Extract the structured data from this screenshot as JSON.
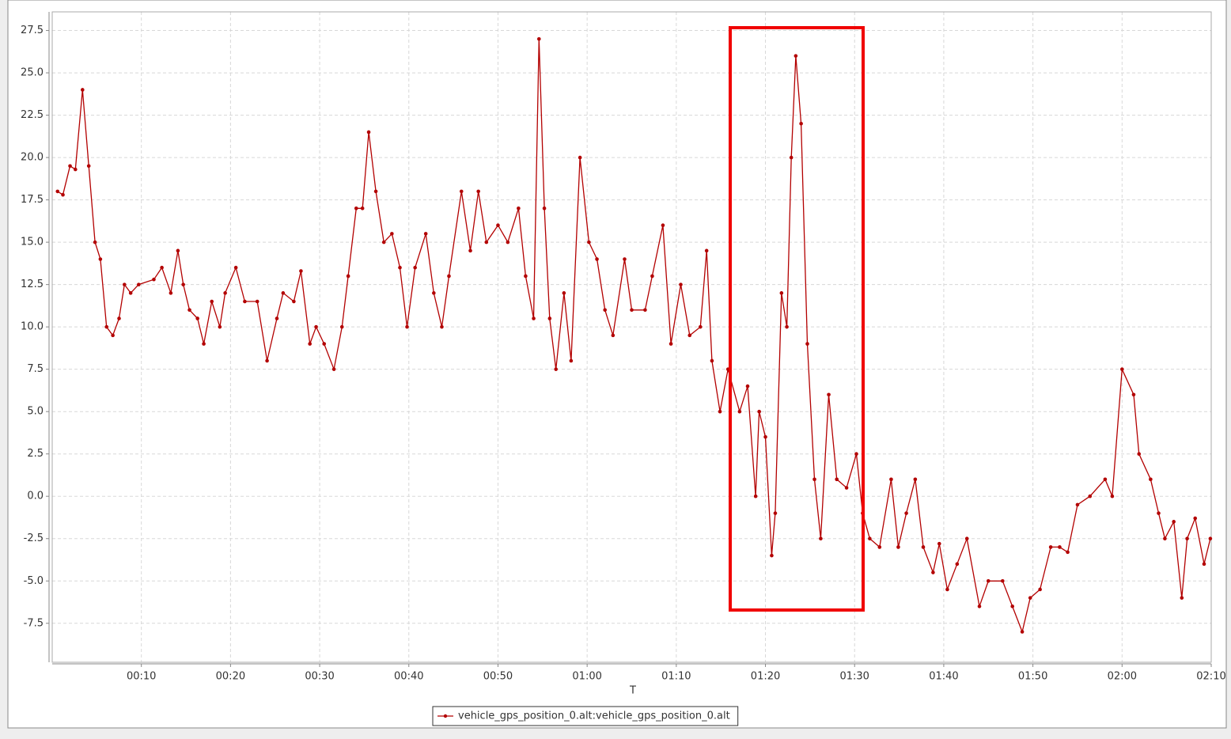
{
  "chart_data": {
    "type": "line",
    "x_label": "T",
    "x": [
      0.6,
      1.2,
      2,
      2.6,
      3.4,
      4.1,
      4.8,
      5.4,
      6.1,
      6.8,
      7.5,
      8.1,
      8.8,
      9.7,
      11.4,
      12.3,
      13.3,
      14.1,
      14.7,
      15.4,
      16.3,
      17,
      17.9,
      18.8,
      19.4,
      20.6,
      21.6,
      23,
      24.1,
      25.2,
      25.9,
      27.1,
      27.9,
      28.9,
      29.6,
      30.5,
      31.6,
      32.5,
      33.2,
      34.1,
      34.8,
      35.5,
      36.3,
      37.2,
      38.1,
      39,
      39.8,
      40.7,
      41.9,
      42.8,
      43.7,
      44.5,
      45.9,
      46.9,
      47.8,
      48.7,
      50,
      51.1,
      52.3,
      53.1,
      54,
      54.6,
      55.2,
      55.8,
      56.5,
      57.4,
      58.2,
      59.2,
      60.2,
      61.1,
      62,
      62.9,
      64.2,
      65,
      66.5,
      67.3,
      68.5,
      69.4,
      70.5,
      71.5,
      72.7,
      73.4,
      74,
      74.9,
      75.8,
      77.1,
      78,
      78.9,
      79.3,
      80,
      80.7,
      81.1,
      81.8,
      82.4,
      82.9,
      83.4,
      84,
      84.7,
      85.5,
      86.2,
      87.1,
      88,
      89.1,
      90.2,
      90.9,
      91.7,
      92.8,
      94.1,
      94.9,
      95.8,
      96.8,
      97.7,
      98.8,
      99.5,
      100.4,
      101.5,
      102.6,
      104,
      105,
      106.6,
      107.7,
      108.8,
      109.7,
      110.8,
      112,
      113,
      113.9,
      115,
      116.4,
      118.1,
      118.9,
      120,
      121.3,
      121.9,
      123.2,
      124.1,
      124.8,
      125.8,
      126.7,
      127.3,
      128.2,
      129.2,
      129.9
    ],
    "series": [
      {
        "name": "vehicle_gps_position_0.alt:vehicle_gps_position_0.alt",
        "color": "#b30000",
        "values": [
          18,
          17.8,
          19.5,
          19.3,
          24,
          19.5,
          15,
          14,
          10,
          9.5,
          10.5,
          12.5,
          12,
          12.5,
          12.8,
          13.5,
          12,
          14.5,
          12.5,
          11,
          10.5,
          9,
          11.5,
          10,
          12,
          13.5,
          11.5,
          11.5,
          8,
          10.5,
          12,
          11.5,
          13.3,
          9,
          10,
          9,
          7.5,
          10,
          13,
          17,
          17,
          21.5,
          18,
          15,
          15.5,
          13.5,
          10,
          13.5,
          15.5,
          12,
          10,
          13,
          18,
          14.5,
          18,
          15,
          16,
          15,
          17,
          13,
          10.5,
          27,
          17,
          10.5,
          7.5,
          12,
          8,
          20,
          15,
          14,
          11,
          9.5,
          14,
          11,
          11,
          13,
          16,
          9,
          12.5,
          9.5,
          10,
          14.5,
          8,
          5,
          7.5,
          5,
          6.5,
          0,
          5,
          3.5,
          -3.5,
          -1,
          12,
          10,
          20,
          26,
          22,
          9,
          1,
          -2.5,
          6,
          1,
          0.5,
          2.5,
          -1,
          -2.5,
          -3,
          1,
          -3,
          -1,
          1,
          -3,
          -4.5,
          -2.8,
          -5.5,
          -4,
          -2.5,
          -6.5,
          -5,
          -5,
          -6.5,
          -8,
          -6,
          -5.5,
          -3,
          -3,
          -3.3,
          -0.5,
          0,
          1,
          0,
          7.5,
          6,
          2.5,
          1,
          -1,
          -2.5,
          -1.5,
          -6,
          -2.5,
          -1.3,
          -4,
          -2.5
        ]
      }
    ],
    "xlim": [
      0,
      130
    ],
    "ylim": [
      -9.8,
      28.6
    ],
    "xticks": [
      {
        "value": 10,
        "label": "00:10"
      },
      {
        "value": 20,
        "label": "00:20"
      },
      {
        "value": 30,
        "label": "00:30"
      },
      {
        "value": 40,
        "label": "00:40"
      },
      {
        "value": 50,
        "label": "00:50"
      },
      {
        "value": 60,
        "label": "01:00"
      },
      {
        "value": 70,
        "label": "01:10"
      },
      {
        "value": 80,
        "label": "01:20"
      },
      {
        "value": 90,
        "label": "01:30"
      },
      {
        "value": 100,
        "label": "01:40"
      },
      {
        "value": 110,
        "label": "01:50"
      },
      {
        "value": 120,
        "label": "02:00"
      },
      {
        "value": 130,
        "label": "02:10"
      }
    ],
    "yticks": [
      -7.5,
      {
        "value": -5,
        "label": "-5.0"
      },
      -2.5,
      {
        "value": 0,
        "label": "0.0"
      },
      2.5,
      {
        "value": 5,
        "label": "5.0"
      },
      7.5,
      {
        "value": 10,
        "label": "10.0"
      },
      12.5,
      {
        "value": 15,
        "label": "15.0"
      },
      17.5,
      {
        "value": 20,
        "label": "20.0"
      },
      22.5,
      {
        "value": 25,
        "label": "25.0"
      },
      27.5
    ],
    "grid": true
  }
}
